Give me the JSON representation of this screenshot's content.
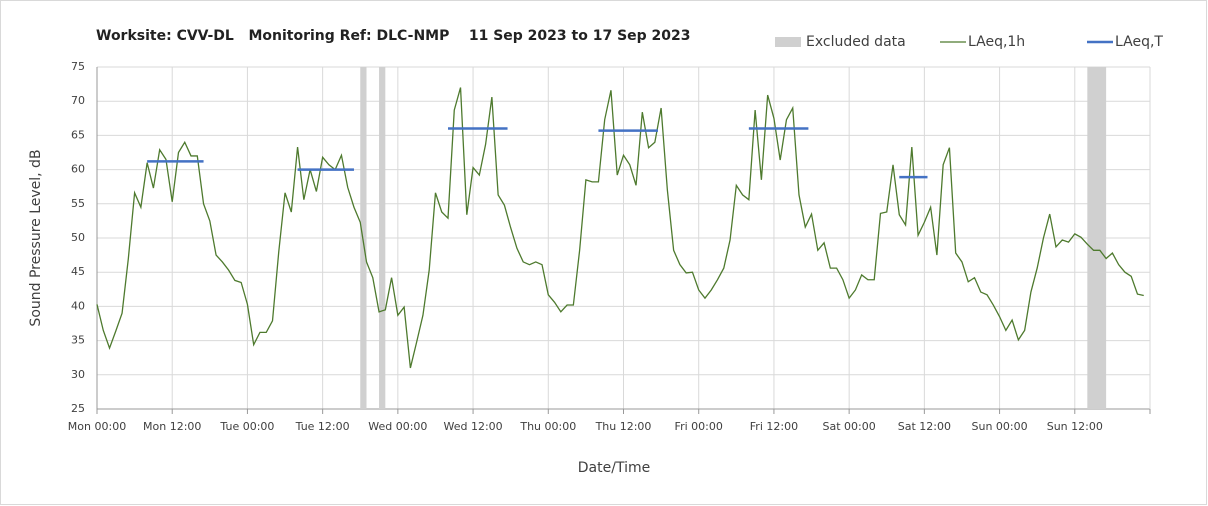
{
  "chart_data": {
    "type": "line",
    "title": "Worksite: CVV-DL   Monitoring Ref: DLC-NMP    11 Sep 2023 to 17 Sep 2023",
    "x_label": "Date/Time",
    "y_label": "Sound Pressure Level, dB",
    "xlim": [
      0,
      168
    ],
    "xticks": [
      {
        "value": 0,
        "label": "Mon 00:00"
      },
      {
        "value": 12,
        "label": "Mon 12:00"
      },
      {
        "value": 24,
        "label": "Tue 00:00"
      },
      {
        "value": 36,
        "label": "Tue 12:00"
      },
      {
        "value": 48,
        "label": "Wed 00:00"
      },
      {
        "value": 60,
        "label": "Wed 12:00"
      },
      {
        "value": 72,
        "label": "Thu 00:00"
      },
      {
        "value": 84,
        "label": "Thu 12:00"
      },
      {
        "value": 96,
        "label": "Fri 00:00"
      },
      {
        "value": 108,
        "label": "Fri 12:00"
      },
      {
        "value": 120,
        "label": "Sat 00:00"
      },
      {
        "value": 132,
        "label": "Sat 12:00"
      },
      {
        "value": 144,
        "label": "Sun 00:00"
      },
      {
        "value": 156,
        "label": "Sun 12:00"
      }
    ],
    "ylim": [
      25,
      75
    ],
    "yticks": [
      25,
      30,
      35,
      40,
      45,
      50,
      55,
      60,
      65,
      70,
      75
    ],
    "grid": true,
    "legend": "top-right",
    "excluded": {
      "name": "Excluded data",
      "color": "#d0d0d0",
      "ranges": [
        [
          42,
          43
        ],
        [
          45,
          46
        ],
        [
          158,
          161
        ]
      ]
    },
    "series": [
      {
        "name": "LAeq,1h",
        "color": "#4e7a2e",
        "x": [
          0,
          1,
          2,
          3,
          4,
          5,
          6,
          7,
          8,
          9,
          10,
          11,
          12,
          13,
          14,
          15,
          16,
          17,
          18,
          19,
          20,
          21,
          22,
          23,
          24,
          25,
          26,
          27,
          28,
          29,
          30,
          31,
          32,
          33,
          34,
          35,
          36,
          37,
          38,
          39,
          40,
          41,
          42,
          43,
          44,
          45,
          46,
          47,
          48,
          49,
          50,
          51,
          52,
          53,
          54,
          55,
          56,
          57,
          58,
          59,
          60,
          61,
          62,
          63,
          64,
          65,
          66,
          67,
          68,
          69,
          70,
          71,
          72,
          73,
          74,
          75,
          76,
          77,
          78,
          79,
          80,
          81,
          82,
          83,
          84,
          85,
          86,
          87,
          88,
          89,
          90,
          91,
          92,
          93,
          94,
          95,
          96,
          97,
          98,
          99,
          100,
          101,
          102,
          103,
          104,
          105,
          106,
          107,
          108,
          109,
          110,
          111,
          112,
          113,
          114,
          115,
          116,
          117,
          118,
          119,
          120,
          121,
          122,
          123,
          124,
          125,
          126,
          127,
          128,
          129,
          130,
          131,
          132,
          133,
          134,
          135,
          136,
          137,
          138,
          139,
          140,
          141,
          142,
          143,
          144,
          145,
          146,
          147,
          148,
          149,
          150,
          151,
          152,
          153,
          154,
          155,
          156,
          157,
          158,
          159,
          160,
          161,
          162,
          163,
          164,
          165,
          166,
          167
        ],
        "values": [
          40.3,
          36.5,
          33.9,
          36.4,
          39,
          47,
          56.6,
          54.5,
          61,
          57.3,
          62.9,
          61.5,
          55.3,
          62.5,
          64,
          62,
          62,
          55,
          52.5,
          47.5,
          46.5,
          45.3,
          43.8,
          43.5,
          40.3,
          34.4,
          36.2,
          36.2,
          37.9,
          48,
          56.6,
          53.8,
          63.3,
          55.6,
          60,
          56.8,
          61.8,
          60.7,
          60,
          62.1,
          57.4,
          54.5,
          52.3,
          46.5,
          44.2,
          39.2,
          39.5,
          44.2,
          38.7,
          39.9,
          31,
          34.8,
          38.7,
          45.3,
          56.6,
          53.8,
          52.9,
          68.7,
          72,
          53.4,
          60.3,
          59.2,
          63.7,
          70.6,
          56.3,
          54.8,
          51.5,
          48.5,
          46.5,
          46.1,
          46.5,
          46.1,
          41.7,
          40.6,
          39.2,
          40.2,
          40.2,
          48.2,
          58.5,
          58.2,
          58.2,
          67.3,
          71.6,
          59.2,
          62.1,
          60.7,
          57.7,
          68.4,
          63.2,
          64,
          69,
          57,
          48.2,
          46.1,
          44.9,
          45,
          42.4,
          41.2,
          42.4,
          43.9,
          45.6,
          49.7,
          57.7,
          56.3,
          55.6,
          68.7,
          58.5,
          70.9,
          67.5,
          61.4,
          67.3,
          69,
          56.3,
          51.6,
          53.5,
          48.2,
          49.3,
          45.6,
          45.6,
          43.9,
          41.2,
          42.4,
          44.6,
          43.9,
          43.9,
          53.6,
          53.8,
          60.7,
          53.4,
          51.9,
          63.3,
          50.4,
          52.3,
          54.5,
          47.5,
          60.7,
          63.2,
          47.8,
          46.5,
          43.6,
          44.2,
          42.1,
          41.7,
          40.2,
          38.5,
          36.5,
          38,
          35.1,
          36.5,
          42.1,
          45.6,
          50,
          53.5,
          48.7,
          49.7,
          49.4,
          50.6,
          50.1,
          49.1,
          48.2,
          48.2,
          47,
          47.8,
          46.1,
          45,
          44.4,
          41.8,
          41.6
        ]
      },
      {
        "name": "LAeq,T",
        "color": "#4472c4",
        "x_start": [
          8,
          32,
          56,
          80,
          104,
          128
        ],
        "x_end": [
          17,
          41,
          65.5,
          89.5,
          113.5,
          132.5
        ],
        "values": [
          61.2,
          60,
          66,
          65.7,
          66,
          58.9
        ]
      }
    ]
  }
}
